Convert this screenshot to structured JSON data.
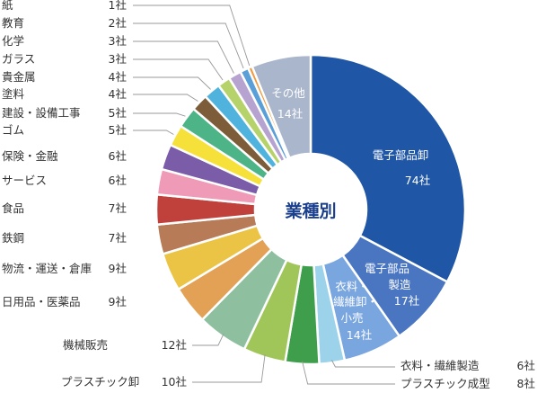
{
  "chart_data": {
    "type": "pie",
    "style": "donut",
    "center_label": "業種別",
    "unit": "社",
    "slices": [
      {
        "label": "電子部品卸",
        "value": 74,
        "value_label": "74社",
        "color": "#1f56a5"
      },
      {
        "label": "電子部品製造",
        "value": 17,
        "value_label": "17社",
        "color": "#4a76c1"
      },
      {
        "label": "衣料・繊維卸・小売",
        "value": 14,
        "value_label": "14社",
        "color": "#7aa6e0"
      },
      {
        "label": "衣料・繊維製造",
        "value": 6,
        "value_label": "6社",
        "color": "#9dd3ea"
      },
      {
        "label": "プラスチック成型",
        "value": 8,
        "value_label": "8社",
        "color": "#3e9e4b"
      },
      {
        "label": "プラスチック卸",
        "value": 10,
        "value_label": "10社",
        "color": "#a0c65a"
      },
      {
        "label": "機械販売",
        "value": 12,
        "value_label": "12社",
        "color": "#8ec0a0"
      },
      {
        "label": "日用品・医薬品",
        "value": 9,
        "value_label": "9社",
        "color": "#e3a156"
      },
      {
        "label": "物流・運送・倉庫",
        "value": 9,
        "value_label": "9社",
        "color": "#ecc445"
      },
      {
        "label": "鉄鋼",
        "value": 7,
        "value_label": "7社",
        "color": "#b77b58"
      },
      {
        "label": "食品",
        "value": 7,
        "value_label": "7社",
        "color": "#c0403b"
      },
      {
        "label": "サービス",
        "value": 6,
        "value_label": "6社",
        "color": "#ef9bb8"
      },
      {
        "label": "保険・金融",
        "value": 6,
        "value_label": "6社",
        "color": "#7b5ca8"
      },
      {
        "label": "ゴム",
        "value": 5,
        "value_label": "5社",
        "color": "#f6e13b"
      },
      {
        "label": "建設・設備工事",
        "value": 5,
        "value_label": "5社",
        "color": "#4db487"
      },
      {
        "label": "塗料",
        "value": 4,
        "value_label": "4社",
        "color": "#7d5c3a"
      },
      {
        "label": "貴金属",
        "value": 4,
        "value_label": "4社",
        "color": "#4fb3dd"
      },
      {
        "label": "ガラス",
        "value": 3,
        "value_label": "3社",
        "color": "#b5d36a"
      },
      {
        "label": "化学",
        "value": 3,
        "value_label": "3社",
        "color": "#b7a3cf"
      },
      {
        "label": "教育",
        "value": 2,
        "value_label": "2社",
        "color": "#5a9fd8"
      },
      {
        "label": "紙",
        "value": 1,
        "value_label": "1社",
        "color": "#f09a3b"
      },
      {
        "label": "その他",
        "value": 14,
        "value_label": "14社",
        "color": "#aab6cc"
      }
    ]
  }
}
